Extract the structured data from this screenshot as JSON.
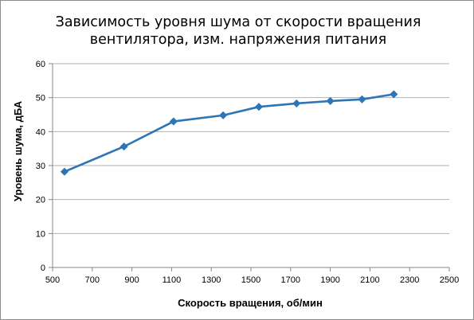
{
  "chart_data": {
    "type": "line",
    "title": [
      "Зависимость уровня шума от скорости вращения",
      "вентилятора, изм. напряжения питания"
    ],
    "xlabel": "Скорость вращения, об/мин",
    "ylabel": "Уровень шума, дБА",
    "xlim": [
      500,
      2500
    ],
    "ylim": [
      0,
      60
    ],
    "x_ticks": [
      500,
      700,
      900,
      1100,
      1300,
      1500,
      1700,
      1900,
      2100,
      2300,
      2500
    ],
    "y_ticks": [
      0,
      10,
      20,
      30,
      40,
      50,
      60
    ],
    "grid": {
      "horizontal": true,
      "vertical": false
    },
    "legend": "none",
    "series": [
      {
        "color": "#2e75b6",
        "marker": "diamond",
        "points": [
          {
            "x": 560,
            "y": 28.2
          },
          {
            "x": 860,
            "y": 35.6
          },
          {
            "x": 1110,
            "y": 43.0
          },
          {
            "x": 1360,
            "y": 44.8
          },
          {
            "x": 1540,
            "y": 47.3
          },
          {
            "x": 1730,
            "y": 48.3
          },
          {
            "x": 1900,
            "y": 49.0
          },
          {
            "x": 2060,
            "y": 49.5
          },
          {
            "x": 2220,
            "y": 51.0
          }
        ]
      }
    ],
    "colors": {
      "gridline": "#b3b3b3",
      "axis": "#868686",
      "border": "#8c8c8c"
    }
  }
}
